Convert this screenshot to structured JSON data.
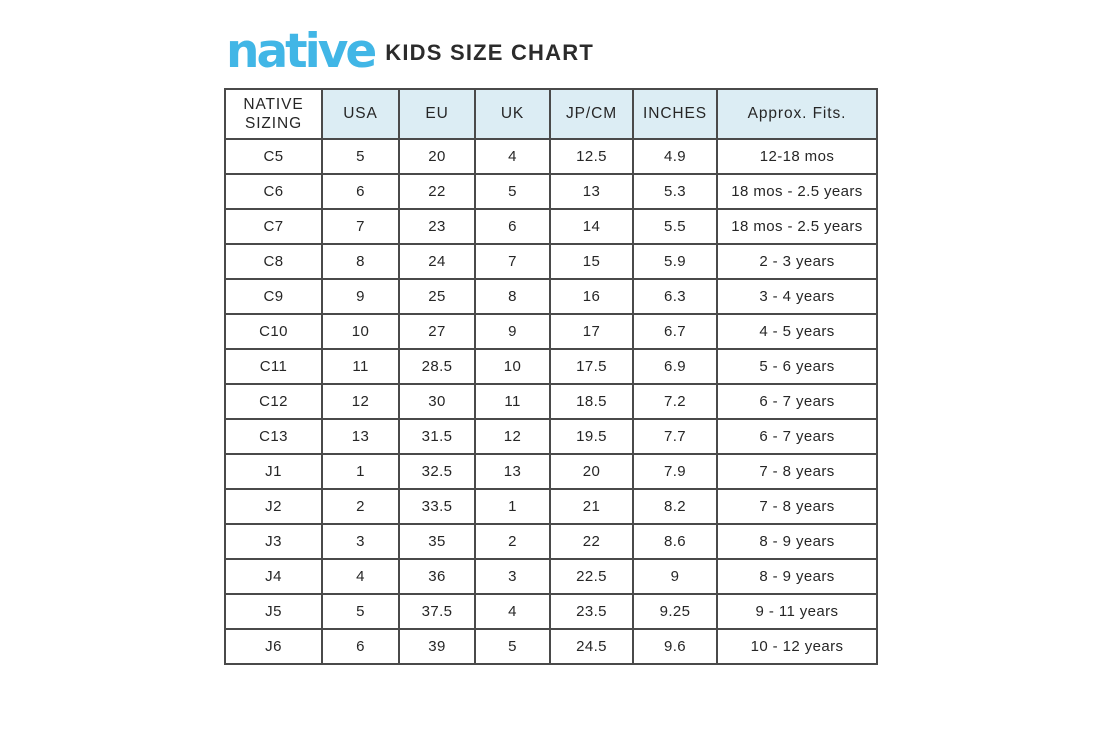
{
  "brand": {
    "logo_text": "native",
    "logo_color": "#41b6e6",
    "title": "KIDS SIZE CHART",
    "title_color": "#2b2b2b"
  },
  "table": {
    "header_bg": "#dcedf4",
    "border_color": "#4a4a4a",
    "columns": [
      "NATIVE SIZING",
      "USA",
      "EU",
      "UK",
      "JP/CM",
      "INCHES",
      "Approx. Fits."
    ],
    "rows": [
      [
        "C5",
        "5",
        "20",
        "4",
        "12.5",
        "4.9",
        "12-18 mos"
      ],
      [
        "C6",
        "6",
        "22",
        "5",
        "13",
        "5.3",
        "18 mos - 2.5 years"
      ],
      [
        "C7",
        "7",
        "23",
        "6",
        "14",
        "5.5",
        "18 mos - 2.5 years"
      ],
      [
        "C8",
        "8",
        "24",
        "7",
        "15",
        "5.9",
        "2 - 3 years"
      ],
      [
        "C9",
        "9",
        "25",
        "8",
        "16",
        "6.3",
        "3 - 4 years"
      ],
      [
        "C10",
        "10",
        "27",
        "9",
        "17",
        "6.7",
        "4 - 5 years"
      ],
      [
        "C11",
        "11",
        "28.5",
        "10",
        "17.5",
        "6.9",
        "5 - 6 years"
      ],
      [
        "C12",
        "12",
        "30",
        "11",
        "18.5",
        "7.2",
        "6 - 7 years"
      ],
      [
        "C13",
        "13",
        "31.5",
        "12",
        "19.5",
        "7.7",
        "6 - 7 years"
      ],
      [
        "J1",
        "1",
        "32.5",
        "13",
        "20",
        "7.9",
        "7 - 8 years"
      ],
      [
        "J2",
        "2",
        "33.5",
        "1",
        "21",
        "8.2",
        "7 - 8 years"
      ],
      [
        "J3",
        "3",
        "35",
        "2",
        "22",
        "8.6",
        "8 - 9 years"
      ],
      [
        "J4",
        "4",
        "36",
        "3",
        "22.5",
        "9",
        "8 - 9 years"
      ],
      [
        "J5",
        "5",
        "37.5",
        "4",
        "23.5",
        "9.25",
        "9 - 11 years"
      ],
      [
        "J6",
        "6",
        "39",
        "5",
        "24.5",
        "9.6",
        "10 - 12 years"
      ]
    ]
  },
  "chart_data": {
    "type": "table",
    "title": "KIDS SIZE CHART",
    "columns": [
      "NATIVE SIZING",
      "USA",
      "EU",
      "UK",
      "JP/CM",
      "INCHES",
      "Approx. Fits."
    ],
    "rows": [
      [
        "C5",
        "5",
        "20",
        "4",
        "12.5",
        "4.9",
        "12-18 mos"
      ],
      [
        "C6",
        "6",
        "22",
        "5",
        "13",
        "5.3",
        "18 mos - 2.5 years"
      ],
      [
        "C7",
        "7",
        "23",
        "6",
        "14",
        "5.5",
        "18 mos - 2.5 years"
      ],
      [
        "C8",
        "8",
        "24",
        "7",
        "15",
        "5.9",
        "2 - 3 years"
      ],
      [
        "C9",
        "9",
        "25",
        "8",
        "16",
        "6.3",
        "3 - 4 years"
      ],
      [
        "C10",
        "10",
        "27",
        "9",
        "17",
        "6.7",
        "4 - 5 years"
      ],
      [
        "C11",
        "11",
        "28.5",
        "10",
        "17.5",
        "6.9",
        "5 - 6 years"
      ],
      [
        "C12",
        "12",
        "30",
        "11",
        "18.5",
        "7.2",
        "6 - 7 years"
      ],
      [
        "C13",
        "13",
        "31.5",
        "12",
        "19.5",
        "7.7",
        "6 - 7 years"
      ],
      [
        "J1",
        "1",
        "32.5",
        "13",
        "20",
        "7.9",
        "7 - 8 years"
      ],
      [
        "J2",
        "2",
        "33.5",
        "1",
        "21",
        "8.2",
        "7 - 8 years"
      ],
      [
        "J3",
        "3",
        "35",
        "2",
        "22",
        "8.6",
        "8 - 9 years"
      ],
      [
        "J4",
        "4",
        "36",
        "3",
        "22.5",
        "9",
        "8 - 9 years"
      ],
      [
        "J5",
        "5",
        "37.5",
        "4",
        "23.5",
        "9.25",
        "9 - 11 years"
      ],
      [
        "J6",
        "6",
        "39",
        "5",
        "24.5",
        "9.6",
        "10 - 12 years"
      ]
    ]
  }
}
